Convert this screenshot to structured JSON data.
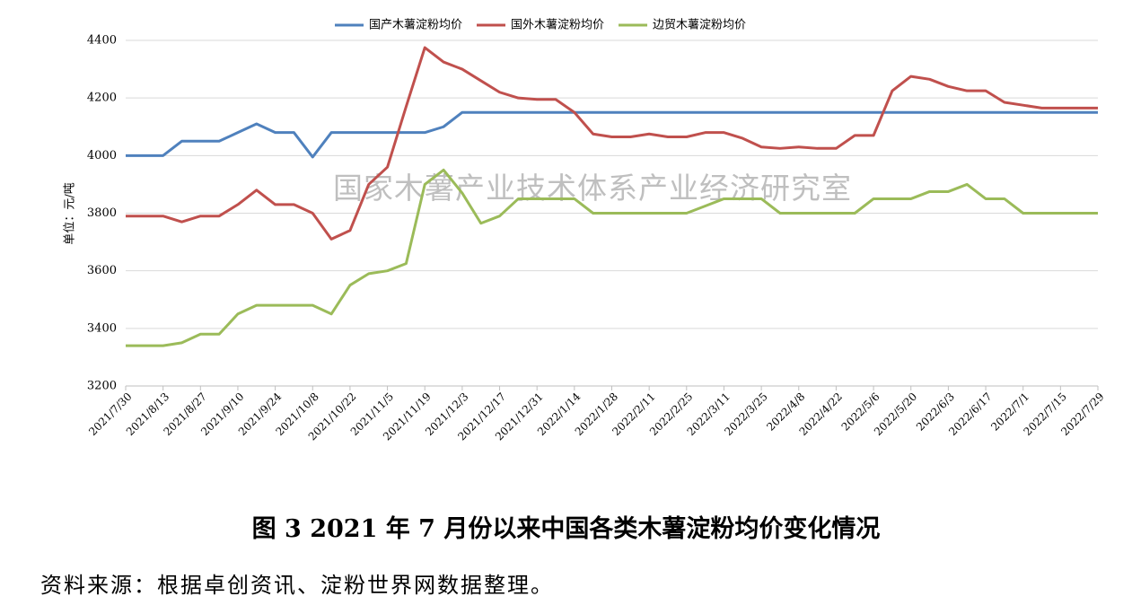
{
  "chart_data": {
    "type": "line",
    "watermark": "国家木薯产业技术体系产业经济研究室",
    "y_label": "单位：元/吨",
    "categories": [
      "2021/7/30",
      null,
      "2021/8/13",
      null,
      "2021/8/27",
      null,
      "2021/9/10",
      null,
      "2021/9/24",
      null,
      "2021/10/8",
      null,
      "2021/10/22",
      null,
      "2021/11/5",
      null,
      "2021/11/19",
      null,
      "2021/12/3",
      null,
      "2021/12/17",
      null,
      "2021/12/31",
      null,
      "2022/1/14",
      null,
      "2022/1/28",
      null,
      "2022/2/11",
      null,
      "2022/2/25",
      null,
      "2022/3/11",
      null,
      "2022/3/25",
      null,
      "2022/4/8",
      null,
      "2022/4/22",
      null,
      "2022/5/6",
      null,
      "2022/5/20",
      null,
      "2022/6/3",
      null,
      "2022/6/17",
      null,
      "2022/7/1",
      null,
      "2022/7/15",
      null,
      "2022/7/29"
    ],
    "series": [
      {
        "name": "国产木薯淀粉均价",
        "color": "#4f81bd",
        "values": [
          4000,
          4000,
          4000,
          4050,
          4050,
          4050,
          4080,
          4110,
          4080,
          4080,
          3995,
          4080,
          4080,
          4080,
          4080,
          4080,
          4080,
          4100,
          4150,
          4150,
          4150,
          4150,
          4150,
          4150,
          4150,
          4150,
          4150,
          4150,
          4150,
          4150,
          4150,
          4150,
          4150,
          4150,
          4150,
          4150,
          4150,
          4150,
          4150,
          4150,
          4150,
          4150,
          4150,
          4150,
          4150,
          4150,
          4150,
          4150,
          4150,
          4150,
          4150,
          4150,
          4150
        ]
      },
      {
        "name": "国外木薯淀粉均价",
        "color": "#c0504d",
        "values": [
          3790,
          3790,
          3790,
          3770,
          3790,
          3790,
          3830,
          3880,
          3830,
          3830,
          3800,
          3710,
          3740,
          3900,
          3960,
          4170,
          4375,
          4325,
          4300,
          4260,
          4220,
          4200,
          4195,
          4195,
          4150,
          4075,
          4065,
          4065,
          4075,
          4065,
          4065,
          4080,
          4080,
          4060,
          4030,
          4025,
          4030,
          4025,
          4025,
          4070,
          4070,
          4225,
          4275,
          4265,
          4240,
          4225,
          4225,
          4185,
          4175,
          4165,
          4165,
          4165,
          4165
        ]
      },
      {
        "name": "边贸木薯淀粉均价",
        "color": "#9bbb59",
        "values": [
          3340,
          3340,
          3340,
          3350,
          3380,
          3380,
          3450,
          3480,
          3480,
          3480,
          3480,
          3450,
          3550,
          3590,
          3600,
          3625,
          3900,
          3950,
          3870,
          3765,
          3790,
          3850,
          3850,
          3850,
          3850,
          3800,
          3800,
          3800,
          3800,
          3800,
          3800,
          3825,
          3850,
          3850,
          3850,
          3800,
          3800,
          3800,
          3800,
          3800,
          3850,
          3850,
          3850,
          3875,
          3875,
          3900,
          3850,
          3850,
          3800,
          3800,
          3800,
          3800,
          3800
        ]
      }
    ],
    "ylim": [
      3200,
      4400
    ],
    "yticks": [
      3200,
      3400,
      3600,
      3800,
      4000,
      4200,
      4400
    ],
    "grid": true
  },
  "caption": "图 3   2021 年 7 月份以来中国各类木薯淀粉均价变化情况",
  "source": "资料来源：根据卓创资讯、淀粉世界网数据整理。"
}
